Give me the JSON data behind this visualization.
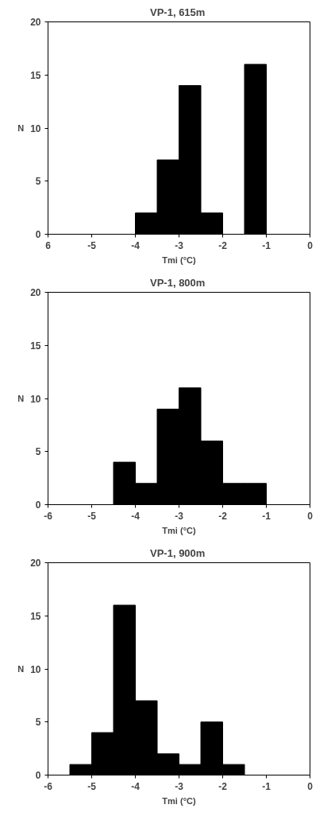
{
  "chart_data": [
    {
      "type": "histogram",
      "title": "VP-1,  615m",
      "xlabel": "Tmi (°C)",
      "ylabel": "N",
      "bins": [
        -4,
        -3.5,
        -3,
        -2.5,
        -2,
        -1.5,
        -1
      ],
      "values": [
        2,
        7,
        14,
        2,
        0,
        16
      ],
      "color": "#000000",
      "xlim": [
        -6,
        0
      ],
      "ylim": [
        0,
        20
      ],
      "xticks": [
        {
          "value": -6,
          "label": "6"
        },
        -5,
        -4,
        -3,
        -2,
        -1,
        0
      ],
      "yticks": [
        0,
        5,
        10,
        15,
        20
      ],
      "grid": false
    },
    {
      "type": "histogram",
      "title": "VP-1,  800m",
      "xlabel": "Tmi (°C)",
      "ylabel": "N",
      "bins": [
        -4.5,
        -4,
        -3.5,
        -3,
        -2.5,
        -2,
        -1.5,
        -1
      ],
      "values": [
        4,
        2,
        9,
        11,
        6,
        2,
        2
      ],
      "color": "#000000",
      "xlim": [
        -6,
        0
      ],
      "ylim": [
        0,
        20
      ],
      "xticks": [
        -6,
        -5,
        -4,
        -3,
        -2,
        -1,
        0
      ],
      "yticks": [
        0,
        5,
        10,
        15,
        20
      ],
      "grid": false
    },
    {
      "type": "histogram",
      "title": "VP-1,  900m",
      "xlabel": "Tmi (°C)",
      "ylabel": "N",
      "bins": [
        -5.5,
        -5,
        -4.5,
        -4,
        -3.5,
        -3,
        -2.5,
        -2,
        -1.5
      ],
      "values": [
        1,
        4,
        16,
        7,
        2,
        1,
        5,
        1
      ],
      "color": "#000000",
      "xlim": [
        -6,
        0
      ],
      "ylim": [
        0,
        20
      ],
      "xticks": [
        -6,
        -5,
        -4,
        -3,
        -2,
        -1,
        0
      ],
      "yticks": [
        0,
        5,
        10,
        15,
        20
      ],
      "grid": false
    }
  ]
}
